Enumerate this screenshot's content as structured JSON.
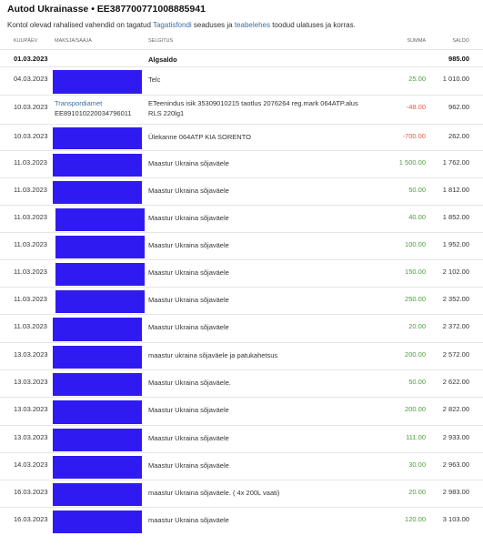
{
  "header": {
    "title": "Autod Ukrainasse • EE387700771008885941",
    "intro_before": "Kontol olevad rahalised vahendid on tagatud ",
    "intro_link1": "Tagatisfondi",
    "intro_middle": " seaduses ja ",
    "intro_link2": "teabelehes",
    "intro_after": " toodud ulatuses ja korras."
  },
  "columns": {
    "date": "KUUPÄEV",
    "payer": "MAKSJA/SAAJA",
    "explanation": "SELGITUS",
    "amount": "SUMMA",
    "balance": "SALDO"
  },
  "opening": {
    "date": "01.03.2023",
    "label": "Algsaldo",
    "balance": "985.00"
  },
  "rows": [
    {
      "date": "04.03.2023",
      "payer": "",
      "explanation": "Telc",
      "amount": "25.00",
      "balance": "1 010.00"
    },
    {
      "date": "10.03.2023",
      "payer": "Transpordiamet",
      "payer2": "EE891010220034796011",
      "explanation": "ETeenindus isik 35309010215 taotlus 2076264 reg.mark 064ATP.alus",
      "explanation2": "RLS 220lg1",
      "amount": "-48.00",
      "balance": "962.00"
    },
    {
      "date": "10.03.2023",
      "payer": "",
      "explanation": "Ülekanne 064ATP KIA SORENTO",
      "amount": "-700.00",
      "balance": "262.00"
    },
    {
      "date": "11.03.2023",
      "payer": "",
      "explanation": "Maastur Ukraina sõjaväele",
      "amount": "1 500.00",
      "balance": "1 762.00"
    },
    {
      "date": "11.03.2023",
      "payer": "",
      "explanation": "Maastur Ukraina sõjaväele",
      "amount": "50.00",
      "balance": "1 812.00"
    },
    {
      "date": "11.03.2023",
      "payer": "",
      "explanation": "Maastur Ukraina sõjaväele",
      "amount": "40.00",
      "balance": "1 852.00"
    },
    {
      "date": "11.03.2023",
      "payer": "",
      "explanation": "Maastur Ukraina sõjaväele",
      "amount": "100.00",
      "balance": "1 952.00"
    },
    {
      "date": "11.03.2023",
      "payer": "",
      "explanation": "Maastur Ukraina sõjaväele",
      "amount": "150.00",
      "balance": "2 102.00"
    },
    {
      "date": "11.03.2023",
      "payer": "",
      "explanation": "Maastur Ukraina sõjaväele",
      "amount": "250.00",
      "balance": "2 352.00"
    },
    {
      "date": "11.03.2023",
      "payer": "",
      "explanation": "Maastur Ukraina sõjaväele",
      "amount": "20.00",
      "balance": "2 372.00"
    },
    {
      "date": "13.03.2023",
      "payer": "",
      "explanation": "maastur ukraina sõjaväele ja patukahetsus",
      "amount": "200.00",
      "balance": "2 572.00"
    },
    {
      "date": "13.03.2023",
      "payer": "",
      "explanation": "Maastur Ukraina sõjaväele.",
      "amount": "50.00",
      "balance": "2 622.00"
    },
    {
      "date": "13.03.2023",
      "payer": "",
      "explanation": "Maastur Ukraina sõjaväele",
      "amount": "200.00",
      "balance": "2 822.00"
    },
    {
      "date": "13.03.2023",
      "payer": "",
      "explanation": "Maastur Ukraina sõjaväele",
      "amount": "111.00",
      "balance": "2 933.00"
    },
    {
      "date": "14.03.2023",
      "payer": "",
      "explanation": "Maastur Ukraina sõjaväele",
      "amount": "30.00",
      "balance": "2 963.00"
    },
    {
      "date": "16.03.2023",
      "payer": "",
      "explanation": "maastur Ukraina sõjaväele. ( 4x 200L vaati)",
      "amount": "20.00",
      "balance": "2 983.00"
    },
    {
      "date": "16.03.2023",
      "payer": "",
      "explanation": "maastur Ukraina sõjaväele",
      "amount": "120.00",
      "balance": "3 103.00"
    }
  ],
  "colors": {
    "positive": "#4b9c3b",
    "negative": "#e15a46",
    "link": "#3a6ea5",
    "redaction": "#2f1bf2"
  }
}
